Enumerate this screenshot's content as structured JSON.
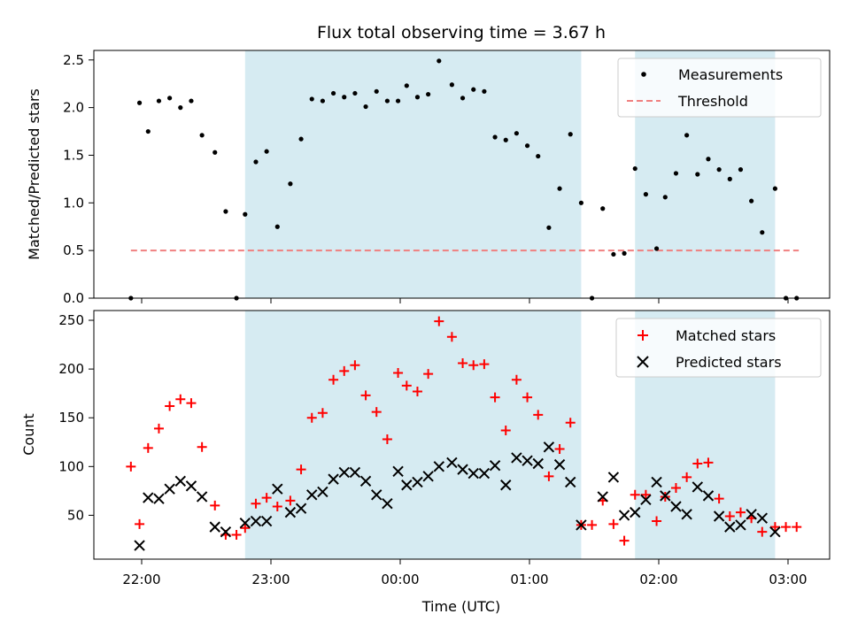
{
  "title": "Flux total observing time = 3.67 h",
  "colors": {
    "measurement": "#000000",
    "threshold": "#f08080",
    "matched": "#ff0000",
    "predicted": "#000000",
    "shade": "#add8e6"
  },
  "chart_data": [
    {
      "type": "scatter",
      "ylabel": "Matched/Predicted stars",
      "xlabel": "",
      "ylim": [
        0,
        2.6
      ],
      "y_ticks": [
        "0.0",
        "0.5",
        "1.0",
        "1.5",
        "2.0",
        "2.5"
      ],
      "legend_position": "top-right",
      "shaded_ranges": [
        [
          "22:48",
          "01:24"
        ],
        [
          "01:49",
          "02:54"
        ]
      ],
      "threshold": {
        "name": "Threshold",
        "y": 0.5,
        "x_range": [
          "21:55",
          "03:05"
        ]
      },
      "series": [
        {
          "name": "Measurements",
          "x": [
            "21:55",
            "21:59",
            "22:03",
            "22:08",
            "22:13",
            "22:18",
            "22:23",
            "22:28",
            "22:34",
            "22:39",
            "22:44",
            "22:48",
            "22:53",
            "22:58",
            "23:03",
            "23:09",
            "23:14",
            "23:19",
            "23:24",
            "23:29",
            "23:34",
            "23:39",
            "23:44",
            "23:49",
            "23:54",
            "23:59",
            "00:03",
            "00:08",
            "00:13",
            "00:18",
            "00:24",
            "00:29",
            "00:34",
            "00:39",
            "00:44",
            "00:49",
            "00:54",
            "00:59",
            "01:04",
            "01:09",
            "01:14",
            "01:19",
            "01:24",
            "01:29",
            "01:34",
            "01:39",
            "01:44",
            "01:49",
            "01:54",
            "01:59",
            "02:03",
            "02:08",
            "02:13",
            "02:18",
            "02:23",
            "02:28",
            "02:33",
            "02:38",
            "02:43",
            "02:48",
            "02:54",
            "02:59",
            "03:04"
          ],
          "y": [
            0.0,
            2.05,
            1.75,
            2.07,
            2.1,
            2.0,
            2.07,
            1.71,
            1.53,
            0.91,
            0.0,
            0.88,
            1.43,
            1.54,
            0.75,
            1.2,
            1.67,
            2.09,
            2.07,
            2.15,
            2.11,
            2.15,
            2.01,
            2.17,
            2.07,
            2.07,
            2.23,
            2.11,
            2.14,
            2.49,
            2.24,
            2.1,
            2.19,
            2.17,
            1.69,
            1.66,
            1.73,
            1.6,
            1.49,
            0.74,
            1.15,
            1.72,
            1.0,
            0.0,
            0.94,
            0.46,
            0.47,
            1.36,
            1.09,
            0.52,
            1.06,
            1.31,
            1.71,
            1.3,
            1.46,
            1.35,
            1.25,
            1.35,
            1.02,
            0.69,
            1.15,
            0.0,
            0.0
          ]
        }
      ]
    },
    {
      "type": "scatter",
      "ylabel": "Count",
      "xlabel": "Time (UTC)",
      "ylim": [
        5,
        260
      ],
      "y_ticks": [
        "50",
        "100",
        "150",
        "200",
        "250"
      ],
      "x_ticks": [
        "22:00",
        "23:00",
        "00:00",
        "01:00",
        "02:00",
        "03:00"
      ],
      "legend_position": "top-right",
      "shaded_ranges": [
        [
          "22:48",
          "01:24"
        ],
        [
          "01:49",
          "02:54"
        ]
      ],
      "series": [
        {
          "name": "Matched stars",
          "x": [
            "21:55",
            "21:59",
            "22:03",
            "22:08",
            "22:13",
            "22:18",
            "22:23",
            "22:28",
            "22:34",
            "22:39",
            "22:44",
            "22:48",
            "22:53",
            "22:58",
            "23:03",
            "23:09",
            "23:14",
            "23:19",
            "23:24",
            "23:29",
            "23:34",
            "23:39",
            "23:44",
            "23:49",
            "23:54",
            "23:59",
            "00:03",
            "00:08",
            "00:13",
            "00:18",
            "00:24",
            "00:29",
            "00:34",
            "00:39",
            "00:44",
            "00:49",
            "00:54",
            "00:59",
            "01:04",
            "01:09",
            "01:14",
            "01:19",
            "01:24",
            "01:29",
            "01:34",
            "01:39",
            "01:44",
            "01:49",
            "01:54",
            "01:59",
            "02:03",
            "02:08",
            "02:13",
            "02:18",
            "02:23",
            "02:28",
            "02:33",
            "02:38",
            "02:43",
            "02:48",
            "02:54",
            "02:59",
            "03:04"
          ],
          "y": [
            100,
            41,
            119,
            139,
            162,
            169,
            165,
            120,
            60,
            30,
            30,
            37,
            62,
            68,
            59,
            65,
            97,
            150,
            155,
            189,
            198,
            204,
            173,
            156,
            128,
            196,
            183,
            177,
            195,
            249,
            233,
            206,
            204,
            205,
            171,
            137,
            189,
            171,
            153,
            90,
            118,
            145,
            40,
            40,
            65,
            41,
            24,
            71,
            71,
            44,
            69,
            78,
            89,
            103,
            104,
            67,
            49,
            53,
            47,
            33,
            38,
            38,
            38
          ]
        },
        {
          "name": "Predicted stars",
          "x": [
            "21:59",
            "22:03",
            "22:08",
            "22:13",
            "22:18",
            "22:23",
            "22:28",
            "22:34",
            "22:39",
            "22:48",
            "22:53",
            "22:58",
            "23:03",
            "23:09",
            "23:14",
            "23:19",
            "23:24",
            "23:29",
            "23:34",
            "23:39",
            "23:44",
            "23:49",
            "23:54",
            "23:59",
            "00:03",
            "00:08",
            "00:13",
            "00:18",
            "00:24",
            "00:29",
            "00:34",
            "00:39",
            "00:44",
            "00:49",
            "00:54",
            "00:59",
            "01:04",
            "01:09",
            "01:14",
            "01:19",
            "01:24",
            "01:34",
            "01:39",
            "01:44",
            "01:49",
            "01:54",
            "01:59",
            "02:03",
            "02:08",
            "02:13",
            "02:18",
            "02:23",
            "02:28",
            "02:33",
            "02:38",
            "02:43",
            "02:48",
            "02:54"
          ],
          "y": [
            19,
            68,
            67,
            77,
            85,
            80,
            69,
            38,
            33,
            42,
            44,
            44,
            77,
            53,
            57,
            71,
            74,
            87,
            94,
            94,
            85,
            71,
            62,
            95,
            81,
            84,
            90,
            100,
            104,
            97,
            93,
            93,
            101,
            81,
            109,
            106,
            103,
            120,
            102,
            84,
            40,
            69,
            89,
            50,
            53,
            66,
            84,
            70,
            59,
            51,
            79,
            70,
            49,
            38,
            40,
            51,
            47,
            33
          ]
        }
      ]
    }
  ]
}
